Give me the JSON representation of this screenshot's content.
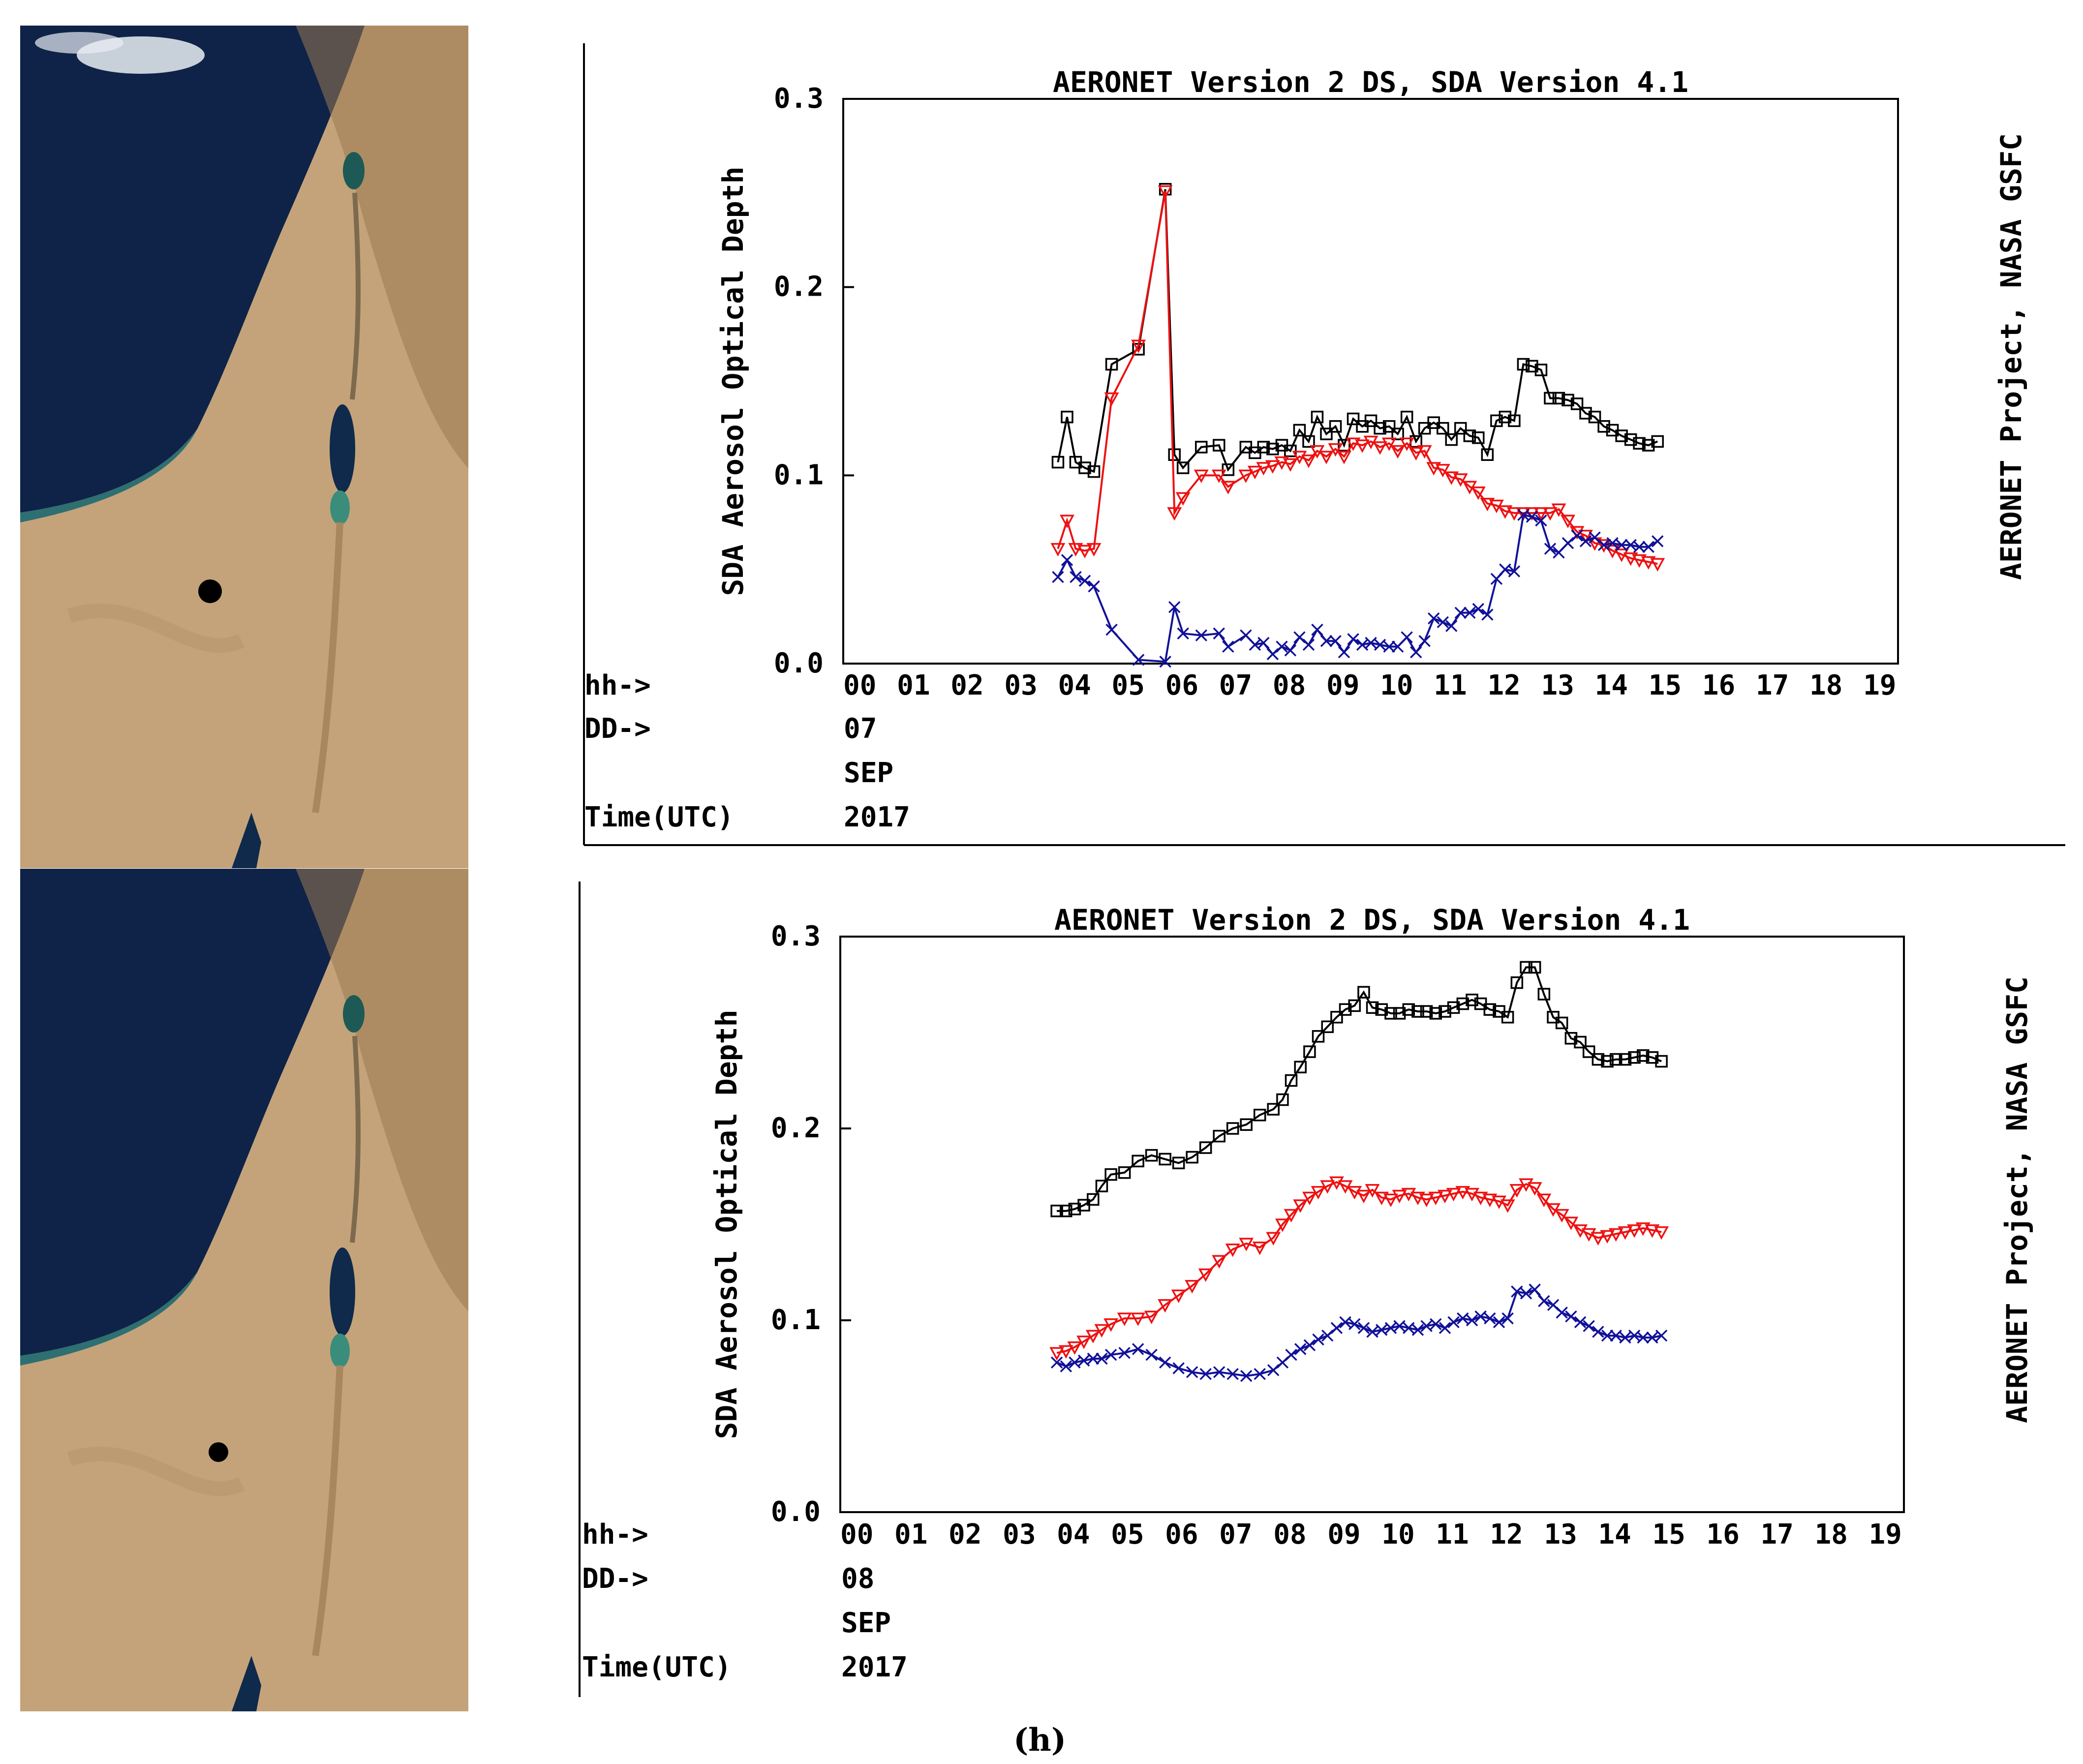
{
  "caption": "(h)",
  "maps": [
    {
      "name": "satellite-map-sep-07",
      "marker": "site"
    },
    {
      "name": "satellite-map-sep-08",
      "marker": "site"
    }
  ],
  "colors": {
    "fine": "#ee1111",
    "coarse": "#111199",
    "total": "#000000",
    "frame": "#000000"
  },
  "chart_data": [
    {
      "type": "line",
      "title": "AERONET Version 2 DS, SDA Version 4.1",
      "ylabel": "SDA Aerosol Optical Depth",
      "right_label": "AERONET Project, NASA GSFC",
      "ylim": [
        0,
        0.3
      ],
      "yticks": [
        "0.0",
        "0.1",
        "0.2",
        "0.3"
      ],
      "xlim": [
        0,
        20
      ],
      "hour_ticks": [
        "00",
        "01",
        "02",
        "03",
        "04",
        "05",
        "06",
        "07",
        "08",
        "09",
        "10",
        "11",
        "12",
        "13",
        "14",
        "15",
        "16",
        "17",
        "18",
        "19"
      ],
      "row_labels": [
        "hh->",
        "DD->",
        "",
        "Time(UTC)"
      ],
      "date": {
        "day": "07",
        "month": "SEP",
        "year": "2017"
      },
      "series": [
        {
          "id": "total",
          "marker": "square",
          "color": "#000000",
          "x": [
            4.0,
            4.17,
            4.33,
            4.5,
            4.67,
            5.0,
            5.5,
            6.0,
            6.17,
            6.33,
            6.67,
            7.0,
            7.17,
            7.5,
            7.67,
            7.83,
            8.0,
            8.17,
            8.33,
            8.5,
            8.67,
            8.83,
            9.0,
            9.17,
            9.33,
            9.5,
            9.67,
            9.83,
            10.0,
            10.17,
            10.33,
            10.5,
            10.67,
            10.83,
            11.0,
            11.17,
            11.33,
            11.5,
            11.67,
            11.83,
            12.0,
            12.17,
            12.33,
            12.5,
            12.67,
            12.83,
            13.0,
            13.17,
            13.33,
            13.5,
            13.67,
            13.83,
            14.0,
            14.17,
            14.33,
            14.5,
            14.67,
            14.83,
            15.0,
            15.17
          ],
          "y": [
            0.107,
            0.131,
            0.107,
            0.104,
            0.102,
            0.159,
            0.167,
            0.252,
            0.111,
            0.104,
            0.115,
            0.116,
            0.103,
            0.115,
            0.112,
            0.115,
            0.114,
            0.116,
            0.113,
            0.124,
            0.118,
            0.131,
            0.122,
            0.126,
            0.116,
            0.13,
            0.126,
            0.129,
            0.125,
            0.126,
            0.122,
            0.131,
            0.118,
            0.125,
            0.128,
            0.125,
            0.119,
            0.125,
            0.121,
            0.12,
            0.111,
            0.129,
            0.131,
            0.129,
            0.159,
            0.158,
            0.156,
            0.141,
            0.141,
            0.14,
            0.138,
            0.133,
            0.131,
            0.126,
            0.124,
            0.121,
            0.119,
            0.117,
            0.116,
            0.118
          ]
        },
        {
          "id": "fine",
          "marker": "triangle-down",
          "color": "#ee1111",
          "x": [
            4.0,
            4.17,
            4.33,
            4.5,
            4.67,
            5.0,
            5.5,
            6.0,
            6.17,
            6.33,
            6.67,
            7.0,
            7.17,
            7.5,
            7.67,
            7.83,
            8.0,
            8.17,
            8.33,
            8.5,
            8.67,
            8.83,
            9.0,
            9.17,
            9.33,
            9.5,
            9.67,
            9.83,
            10.0,
            10.17,
            10.33,
            10.5,
            10.67,
            10.83,
            11.0,
            11.17,
            11.33,
            11.5,
            11.67,
            11.83,
            12.0,
            12.17,
            12.33,
            12.5,
            12.67,
            12.83,
            13.0,
            13.17,
            13.33,
            13.5,
            13.67,
            13.83,
            14.0,
            14.17,
            14.33,
            14.5,
            14.67,
            14.83,
            15.0,
            15.17
          ],
          "y": [
            0.061,
            0.076,
            0.061,
            0.06,
            0.061,
            0.141,
            0.169,
            0.251,
            0.08,
            0.088,
            0.1,
            0.1,
            0.094,
            0.1,
            0.102,
            0.104,
            0.105,
            0.107,
            0.106,
            0.11,
            0.108,
            0.113,
            0.11,
            0.114,
            0.11,
            0.117,
            0.116,
            0.118,
            0.115,
            0.117,
            0.113,
            0.117,
            0.112,
            0.113,
            0.104,
            0.103,
            0.099,
            0.098,
            0.094,
            0.091,
            0.085,
            0.084,
            0.081,
            0.08,
            0.08,
            0.08,
            0.08,
            0.08,
            0.082,
            0.076,
            0.07,
            0.068,
            0.064,
            0.063,
            0.06,
            0.058,
            0.056,
            0.055,
            0.054,
            0.053
          ]
        },
        {
          "id": "coarse",
          "marker": "x",
          "color": "#111199",
          "x": [
            4.0,
            4.17,
            4.33,
            4.5,
            4.67,
            5.0,
            5.5,
            6.0,
            6.17,
            6.33,
            6.67,
            7.0,
            7.17,
            7.5,
            7.67,
            7.83,
            8.0,
            8.17,
            8.33,
            8.5,
            8.67,
            8.83,
            9.0,
            9.17,
            9.33,
            9.5,
            9.67,
            9.83,
            10.0,
            10.17,
            10.33,
            10.5,
            10.67,
            10.83,
            11.0,
            11.17,
            11.33,
            11.5,
            11.67,
            11.83,
            12.0,
            12.17,
            12.33,
            12.5,
            12.67,
            12.83,
            13.0,
            13.17,
            13.33,
            13.5,
            13.67,
            13.83,
            14.0,
            14.17,
            14.33,
            14.5,
            14.67,
            14.83,
            15.0,
            15.17
          ],
          "y": [
            0.046,
            0.055,
            0.046,
            0.044,
            0.041,
            0.018,
            0.002,
            0.001,
            0.03,
            0.016,
            0.015,
            0.016,
            0.009,
            0.015,
            0.01,
            0.011,
            0.005,
            0.009,
            0.007,
            0.014,
            0.01,
            0.018,
            0.012,
            0.012,
            0.006,
            0.013,
            0.01,
            0.011,
            0.01,
            0.009,
            0.009,
            0.014,
            0.006,
            0.012,
            0.024,
            0.022,
            0.02,
            0.027,
            0.027,
            0.029,
            0.026,
            0.045,
            0.05,
            0.049,
            0.079,
            0.078,
            0.076,
            0.061,
            0.059,
            0.064,
            0.068,
            0.065,
            0.067,
            0.063,
            0.064,
            0.063,
            0.063,
            0.062,
            0.062,
            0.065
          ]
        }
      ]
    },
    {
      "type": "line",
      "title": "AERONET Version 2 DS, SDA Version 4.1",
      "ylabel": "SDA Aerosol Optical Depth",
      "right_label": "AERONET Project, NASA GSFC",
      "ylim": [
        0,
        0.3
      ],
      "yticks": [
        "0.0",
        "0.1",
        "0.2",
        "0.3"
      ],
      "xlim": [
        0,
        20
      ],
      "hour_ticks": [
        "00",
        "01",
        "02",
        "03",
        "04",
        "05",
        "06",
        "07",
        "08",
        "09",
        "10",
        "11",
        "12",
        "13",
        "14",
        "15",
        "16",
        "17",
        "18",
        "19"
      ],
      "row_labels": [
        "hh->",
        "DD->",
        "",
        "Time(UTC)"
      ],
      "date": {
        "day": "08",
        "month": "SEP",
        "year": "2017"
      },
      "series": [
        {
          "id": "total",
          "marker": "square",
          "color": "#000000",
          "x": [
            4.0,
            4.17,
            4.33,
            4.5,
            4.67,
            4.83,
            5.0,
            5.25,
            5.5,
            5.75,
            6.0,
            6.25,
            6.5,
            6.75,
            7.0,
            7.25,
            7.5,
            7.75,
            8.0,
            8.17,
            8.33,
            8.5,
            8.67,
            8.83,
            9.0,
            9.17,
            9.33,
            9.5,
            9.67,
            9.83,
            10.0,
            10.17,
            10.33,
            10.5,
            10.67,
            10.83,
            11.0,
            11.17,
            11.33,
            11.5,
            11.67,
            11.83,
            12.0,
            12.17,
            12.33,
            12.5,
            12.67,
            12.83,
            13.0,
            13.17,
            13.33,
            13.5,
            13.67,
            13.83,
            14.0,
            14.17,
            14.33,
            14.5,
            14.67,
            14.83,
            15.0,
            15.17
          ],
          "y": [
            0.157,
            0.157,
            0.158,
            0.16,
            0.163,
            0.17,
            0.176,
            0.177,
            0.183,
            0.186,
            0.184,
            0.182,
            0.185,
            0.19,
            0.196,
            0.2,
            0.202,
            0.207,
            0.21,
            0.215,
            0.225,
            0.232,
            0.24,
            0.248,
            0.253,
            0.258,
            0.262,
            0.264,
            0.271,
            0.263,
            0.262,
            0.26,
            0.26,
            0.262,
            0.261,
            0.261,
            0.26,
            0.261,
            0.263,
            0.265,
            0.267,
            0.265,
            0.262,
            0.261,
            0.258,
            0.276,
            0.284,
            0.284,
            0.27,
            0.258,
            0.255,
            0.247,
            0.245,
            0.24,
            0.236,
            0.235,
            0.236,
            0.236,
            0.237,
            0.238,
            0.237,
            0.235
          ]
        },
        {
          "id": "fine",
          "marker": "triangle-down",
          "color": "#ee1111",
          "x": [
            4.0,
            4.17,
            4.33,
            4.5,
            4.67,
            4.83,
            5.0,
            5.25,
            5.5,
            5.75,
            6.0,
            6.25,
            6.5,
            6.75,
            7.0,
            7.25,
            7.5,
            7.75,
            8.0,
            8.17,
            8.33,
            8.5,
            8.67,
            8.83,
            9.0,
            9.17,
            9.33,
            9.5,
            9.67,
            9.83,
            10.0,
            10.17,
            10.33,
            10.5,
            10.67,
            10.83,
            11.0,
            11.17,
            11.33,
            11.5,
            11.67,
            11.83,
            12.0,
            12.17,
            12.33,
            12.5,
            12.67,
            12.83,
            13.0,
            13.17,
            13.33,
            13.5,
            13.67,
            13.83,
            14.0,
            14.17,
            14.33,
            14.5,
            14.67,
            14.83,
            15.0,
            15.17
          ],
          "y": [
            0.083,
            0.084,
            0.086,
            0.089,
            0.092,
            0.095,
            0.098,
            0.101,
            0.101,
            0.102,
            0.108,
            0.113,
            0.118,
            0.124,
            0.131,
            0.137,
            0.14,
            0.138,
            0.143,
            0.15,
            0.155,
            0.16,
            0.164,
            0.167,
            0.17,
            0.172,
            0.17,
            0.167,
            0.165,
            0.168,
            0.164,
            0.163,
            0.165,
            0.166,
            0.164,
            0.163,
            0.164,
            0.165,
            0.166,
            0.167,
            0.166,
            0.164,
            0.163,
            0.162,
            0.16,
            0.168,
            0.171,
            0.169,
            0.163,
            0.158,
            0.155,
            0.151,
            0.147,
            0.145,
            0.143,
            0.144,
            0.145,
            0.146,
            0.147,
            0.148,
            0.147,
            0.146
          ]
        },
        {
          "id": "coarse",
          "marker": "x",
          "color": "#111199",
          "x": [
            4.0,
            4.17,
            4.33,
            4.5,
            4.67,
            4.83,
            5.0,
            5.25,
            5.5,
            5.75,
            6.0,
            6.25,
            6.5,
            6.75,
            7.0,
            7.25,
            7.5,
            7.75,
            8.0,
            8.17,
            8.33,
            8.5,
            8.67,
            8.83,
            9.0,
            9.17,
            9.33,
            9.5,
            9.67,
            9.83,
            10.0,
            10.17,
            10.33,
            10.5,
            10.67,
            10.83,
            11.0,
            11.17,
            11.33,
            11.5,
            11.67,
            11.83,
            12.0,
            12.17,
            12.33,
            12.5,
            12.67,
            12.83,
            13.0,
            13.17,
            13.33,
            13.5,
            13.67,
            13.83,
            14.0,
            14.17,
            14.33,
            14.5,
            14.67,
            14.83,
            15.0,
            15.17
          ],
          "y": [
            0.078,
            0.076,
            0.078,
            0.079,
            0.08,
            0.08,
            0.082,
            0.083,
            0.085,
            0.082,
            0.078,
            0.075,
            0.073,
            0.072,
            0.073,
            0.072,
            0.071,
            0.072,
            0.074,
            0.078,
            0.082,
            0.085,
            0.087,
            0.09,
            0.092,
            0.096,
            0.099,
            0.098,
            0.096,
            0.094,
            0.095,
            0.096,
            0.097,
            0.096,
            0.095,
            0.097,
            0.098,
            0.096,
            0.099,
            0.101,
            0.1,
            0.102,
            0.101,
            0.099,
            0.101,
            0.115,
            0.114,
            0.116,
            0.11,
            0.108,
            0.104,
            0.102,
            0.099,
            0.097,
            0.094,
            0.092,
            0.092,
            0.091,
            0.092,
            0.091,
            0.091,
            0.092
          ]
        }
      ]
    }
  ]
}
